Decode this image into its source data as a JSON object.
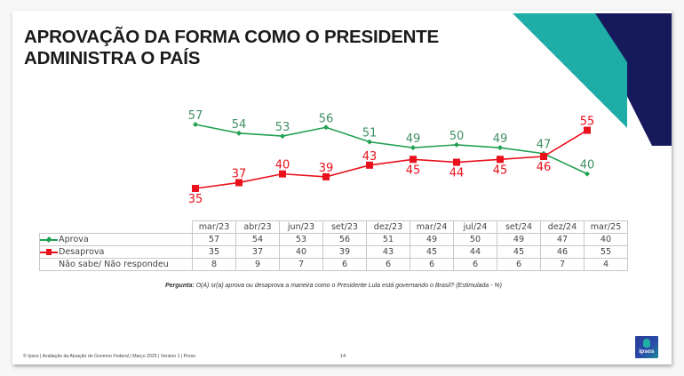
{
  "slide": {
    "title_lines": [
      "APROVAÇÃO DA FORMA COMO O PRESIDENTE",
      "ADMINISTRA O PAÍS"
    ],
    "question_label": "Pergunta:",
    "question_text": " O(A) sr(a) aprova ou desaprova a maneira como o Presidente Lula está governando o Brasil? (Estimulada - %)",
    "footer": "© Ipsos | Avaliação da Atuação do Governo Federal | Março 2025 | Version 1 | Press",
    "page_number": "14",
    "logo_text": "Ipsos",
    "colors": {
      "approve": "#22a052",
      "disapprove": "#e8111c",
      "teal": "#1faea7",
      "navy": "#161a5c"
    }
  },
  "chart_data": {
    "type": "line",
    "title": "APROVAÇÃO DA FORMA COMO O PRESIDENTE ADMINISTRA O PAÍS",
    "xlabel": "",
    "ylabel": "%",
    "categories": [
      "mar/23",
      "abr/23",
      "jun/23",
      "set/23",
      "dez/23",
      "mar/24",
      "jul/24",
      "set/24",
      "dez/24",
      "mar/25"
    ],
    "series": [
      {
        "name": "Aprova",
        "color": "#22a052",
        "marker": "diamond",
        "values": [
          57,
          54,
          53,
          56,
          51,
          49,
          50,
          49,
          47,
          40
        ]
      },
      {
        "name": "Desaprova",
        "color": "#e8111c",
        "marker": "square",
        "values": [
          35,
          37,
          40,
          39,
          43,
          45,
          44,
          45,
          46,
          55
        ]
      }
    ],
    "table_rows": [
      {
        "label": "Aprova",
        "values": [
          57,
          54,
          53,
          56,
          51,
          49,
          50,
          49,
          47,
          40
        ]
      },
      {
        "label": "Desaprova",
        "values": [
          35,
          37,
          40,
          39,
          43,
          45,
          44,
          45,
          46,
          55
        ]
      },
      {
        "label": "Não sabe/ Não respondeu",
        "values": [
          8,
          9,
          7,
          6,
          6,
          6,
          6,
          6,
          7,
          4
        ]
      }
    ],
    "label_positions": {
      "Aprova": [
        "above",
        "above",
        "above",
        "above",
        "above",
        "above",
        "above",
        "above",
        "above",
        "above"
      ],
      "Desaprova": [
        "below",
        "above",
        "above",
        "above",
        "above",
        "below",
        "below",
        "below",
        "below",
        "above"
      ]
    },
    "ylim": [
      30,
      60
    ],
    "grid": false,
    "legend": "table-left"
  }
}
